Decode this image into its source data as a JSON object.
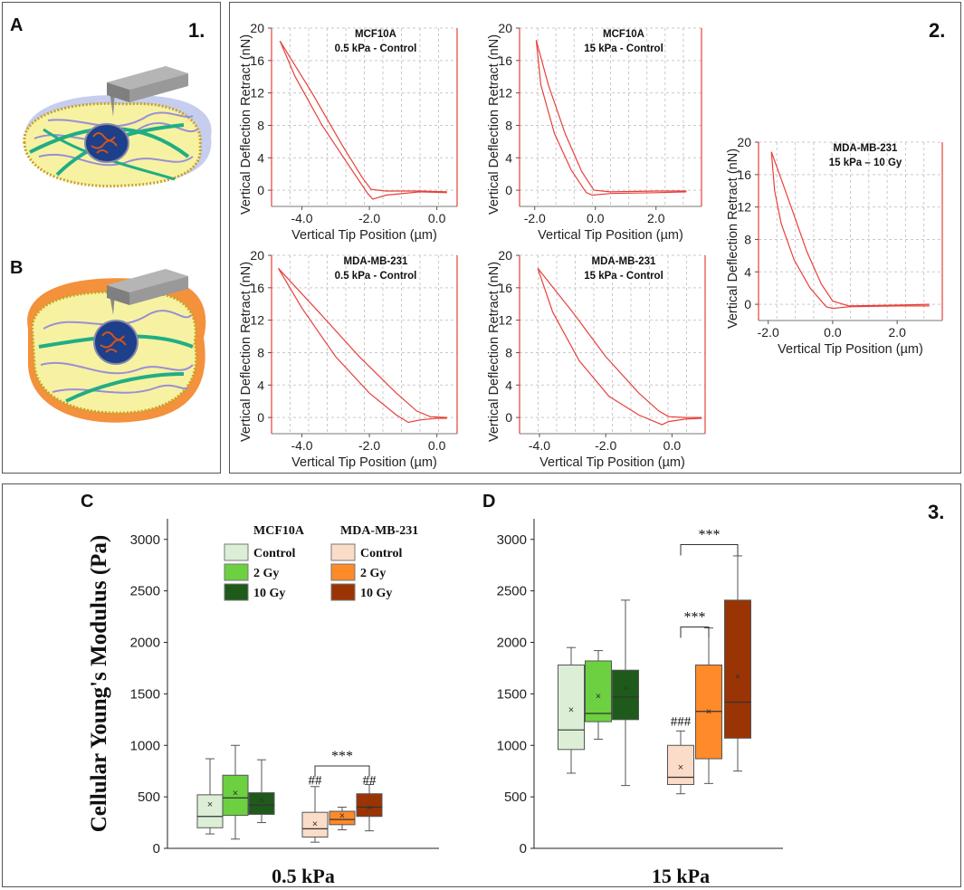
{
  "panel_labels": {
    "a": "A",
    "b": "B",
    "c": "C",
    "d": "D",
    "p1": "1.",
    "p2": "2.",
    "p3": "3."
  },
  "colors": {
    "curve": "#e8403a",
    "mcf_control": "#dcefd6",
    "mcf_2gy": "#6cd040",
    "mcf_10gy": "#1e5a1a",
    "mda_control": "#fbdcc8",
    "mda_2gy": "#ff8a2a",
    "mda_10gy": "#9a3404",
    "cyto": "#f6f2a2",
    "membrane_a": "#b8c0e8",
    "membrane_b": "#f4913c",
    "actin": "#21ad84",
    "filament": "#9b8ed6",
    "tip": "#9a9a9a"
  },
  "icons": [
    "cantilever-icon",
    "cell-nucleus-icon"
  ],
  "chart_data": [
    {
      "type": "line",
      "id": "mcf10a-05",
      "title": [
        "MCF10A",
        "0.5 kPa - Control"
      ],
      "xlabel": "Vertical Tip Position (µm)",
      "ylabel": "Vertical Deflection Retract (nN)",
      "xlim": [
        -4.9,
        0.6
      ],
      "ylim": [
        -2,
        20
      ],
      "xticks": [
        -4.0,
        -2.0,
        0.0
      ],
      "xtick_labels": [
        "-4.0",
        "-2.0",
        "0.0"
      ],
      "yticks": [
        0,
        4,
        8,
        12,
        16,
        20
      ],
      "ytick_labels": [
        "0",
        "4",
        "8",
        "12",
        "16",
        "20"
      ],
      "series": [
        {
          "name": "approach",
          "x": [
            -4.65,
            -3.7,
            -2.8,
            -2.2,
            -1.95,
            -1.5,
            -0.5,
            0.3
          ],
          "y": [
            18.4,
            12,
            5.5,
            1.5,
            0.1,
            -0.1,
            -0.1,
            -0.2
          ]
        },
        {
          "name": "retract",
          "x": [
            -4.65,
            -4.2,
            -3.4,
            -2.6,
            -2.05,
            -1.9,
            -1.5,
            -0.5,
            0.3
          ],
          "y": [
            18.4,
            14,
            8,
            3,
            -0.4,
            -1.1,
            -0.6,
            -0.2,
            -0.3
          ]
        }
      ]
    },
    {
      "type": "line",
      "id": "mcf10a-15",
      "title": [
        "MCF10A",
        "15 kPa - Control"
      ],
      "xlabel": "Vertical Tip Position (µm)",
      "ylabel": "Vertical Deflection Retract (nN)",
      "xlim": [
        -2.5,
        3.5
      ],
      "ylim": [
        -2,
        20
      ],
      "xticks": [
        -2.0,
        0.0,
        2.0
      ],
      "xtick_labels": [
        "-2.0",
        "0.0",
        "2.0"
      ],
      "yticks": [
        0,
        4,
        8,
        12,
        16,
        20
      ],
      "ytick_labels": [
        "0",
        "4",
        "8",
        "12",
        "16",
        "20"
      ],
      "series": [
        {
          "name": "approach",
          "x": [
            -1.95,
            -1.55,
            -1.0,
            -0.45,
            -0.05,
            0.5,
            2.0,
            3.0
          ],
          "y": [
            18.5,
            13,
            7,
            2.3,
            0.0,
            -0.2,
            -0.1,
            -0.1
          ]
        },
        {
          "name": "retract",
          "x": [
            -1.95,
            -1.8,
            -1.35,
            -0.8,
            -0.3,
            -0.1,
            0.5,
            2.0,
            3.0
          ],
          "y": [
            18.5,
            13,
            7,
            2.5,
            -0.3,
            -0.6,
            -0.4,
            -0.3,
            -0.2
          ]
        }
      ]
    },
    {
      "type": "line",
      "id": "mda-05",
      "title": [
        "MDA-MB-231",
        "0.5 kPa - Control"
      ],
      "xlabel": "Vertical Tip Position (µm)",
      "ylabel": "Vertical Deflection Retract (nN)",
      "xlim": [
        -4.9,
        0.6
      ],
      "ylim": [
        -2,
        20
      ],
      "xticks": [
        -4.0,
        -2.0,
        0.0
      ],
      "xtick_labels": [
        "-4.0",
        "-2.0",
        "0.0"
      ],
      "yticks": [
        0,
        4,
        8,
        12,
        16,
        20
      ],
      "ytick_labels": [
        "0",
        "4",
        "8",
        "12",
        "16",
        "20"
      ],
      "series": [
        {
          "name": "approach",
          "x": [
            -4.7,
            -3.5,
            -2.3,
            -1.2,
            -0.6,
            -0.2,
            0.3
          ],
          "y": [
            18.4,
            13,
            7.5,
            3,
            0.8,
            0.1,
            0.0
          ]
        },
        {
          "name": "retract",
          "x": [
            -4.7,
            -4.0,
            -3.0,
            -2.0,
            -1.2,
            -0.85,
            -0.5,
            0.0,
            0.3
          ],
          "y": [
            18.4,
            13.5,
            7.5,
            3.0,
            0.3,
            -0.6,
            -0.3,
            -0.1,
            -0.1
          ]
        }
      ]
    },
    {
      "type": "line",
      "id": "mda-15",
      "title": [
        "MDA-MB-231",
        "15 kPa - Control"
      ],
      "xlabel": "Vertical Tip Position (µm)",
      "ylabel": "Vertical Deflection Retract (nN)",
      "xlim": [
        -4.6,
        1.0
      ],
      "ylim": [
        -2,
        20
      ],
      "xticks": [
        -4.0,
        -2.0,
        0.0
      ],
      "xtick_labels": [
        "-4.0",
        "-2.0",
        "0.0"
      ],
      "yticks": [
        0,
        4,
        8,
        12,
        16,
        20
      ],
      "ytick_labels": [
        "0",
        "4",
        "8",
        "12",
        "16",
        "20"
      ],
      "series": [
        {
          "name": "approach",
          "x": [
            -4.05,
            -3.0,
            -2.0,
            -1.0,
            -0.4,
            -0.1,
            0.4,
            0.9
          ],
          "y": [
            18.4,
            13,
            7.5,
            3,
            0.8,
            0.1,
            0.0,
            0.0
          ]
        },
        {
          "name": "retract",
          "x": [
            -4.05,
            -3.6,
            -2.8,
            -1.9,
            -1.0,
            -0.3,
            -0.1,
            0.4,
            0.9
          ],
          "y": [
            18.4,
            13,
            7,
            2.6,
            0.3,
            -0.9,
            -0.5,
            -0.2,
            -0.1
          ]
        }
      ]
    },
    {
      "type": "line",
      "id": "mda-15-10gy",
      "title": [
        "MDA-MB-231",
        "15 kPa – 10 Gy"
      ],
      "xlabel": "Vertical Tip Position (µm)",
      "ylabel": "Vertical Deflection Retract (nN)",
      "xlim": [
        -2.3,
        3.4
      ],
      "ylim": [
        -2,
        20
      ],
      "xticks": [
        -2.0,
        0.0,
        2.0
      ],
      "xtick_labels": [
        "-2.0",
        "0.0",
        "2.0"
      ],
      "yticks": [
        0,
        4,
        8,
        12,
        16,
        20
      ],
      "ytick_labels": [
        "0",
        "4",
        "8",
        "12",
        "16",
        "20"
      ],
      "series": [
        {
          "name": "approach",
          "x": [
            -1.9,
            -1.6,
            -1.2,
            -0.8,
            -0.35,
            0.0,
            0.5,
            2.0,
            3.0
          ],
          "y": [
            18.8,
            15.5,
            11,
            6.5,
            2.5,
            0.4,
            -0.2,
            -0.1,
            0.0
          ]
        },
        {
          "name": "retract",
          "x": [
            -1.9,
            -1.8,
            -1.6,
            -1.2,
            -0.7,
            -0.2,
            0.0,
            0.5,
            2.0,
            3.0
          ],
          "y": [
            18.8,
            14,
            10,
            5.5,
            2.0,
            -0.3,
            -0.5,
            -0.3,
            -0.2,
            -0.2
          ]
        }
      ]
    },
    {
      "type": "box",
      "id": "box-05kpa",
      "xlabel": "0.5 kPa",
      "ylabel": "Cellular  Young's Modulus (Pa)",
      "ylim": [
        0,
        3200
      ],
      "yticks": [
        0,
        500,
        1000,
        1500,
        2000,
        2500,
        3000
      ],
      "ytick_labels": [
        "0",
        "500",
        "1000",
        "1500",
        "2000",
        "2500",
        "3000"
      ],
      "legend_groups": [
        {
          "title": "MCF10A",
          "items": [
            "Control",
            "2 Gy",
            "10 Gy"
          ]
        },
        {
          "title": "MDA-MB-231",
          "items": [
            "Control",
            "2 Gy",
            "10 Gy"
          ]
        }
      ],
      "boxes": [
        {
          "label": "MCF10A Control",
          "color": "mcf_control",
          "min": 140,
          "q1": 200,
          "median": 310,
          "q3": 520,
          "max": 870,
          "mean": 430
        },
        {
          "label": "MCF10A 2 Gy",
          "color": "mcf_2gy",
          "min": 90,
          "q1": 320,
          "median": 490,
          "q3": 710,
          "max": 1000,
          "mean": 540
        },
        {
          "label": "MCF10A 10 Gy",
          "color": "mcf_10gy",
          "min": 250,
          "q1": 330,
          "median": 420,
          "q3": 540,
          "max": 860,
          "mean": 470
        },
        {
          "label": "MDA-MB-231 Control",
          "color": "mda_control",
          "min": 60,
          "q1": 110,
          "median": 190,
          "q3": 350,
          "max": 600,
          "mean": 240
        },
        {
          "label": "MDA-MB-231 2 Gy",
          "color": "mda_2gy",
          "min": 180,
          "q1": 230,
          "median": 280,
          "q3": 360,
          "max": 400,
          "mean": 320
        },
        {
          "label": "MDA-MB-231 10 Gy",
          "color": "mda_10gy",
          "min": 170,
          "q1": 310,
          "median": 400,
          "q3": 530,
          "max": 620,
          "mean": 400
        }
      ],
      "annotations": [
        {
          "text": "##",
          "box": 3,
          "y": 620
        },
        {
          "text": "##",
          "box": 5,
          "y": 620
        },
        {
          "text": "***",
          "from": 3,
          "to": 5,
          "y": 800
        }
      ]
    },
    {
      "type": "box",
      "id": "box-15kpa",
      "xlabel": "15 kPa",
      "ylim": [
        0,
        3200
      ],
      "yticks": [
        0,
        500,
        1000,
        1500,
        2000,
        2500,
        3000
      ],
      "ytick_labels": [
        "0",
        "500",
        "1000",
        "1500",
        "2000",
        "2500",
        "3000"
      ],
      "boxes": [
        {
          "label": "MCF10A Control",
          "color": "mcf_control",
          "min": 730,
          "q1": 960,
          "median": 1150,
          "q3": 1780,
          "max": 1950,
          "mean": 1350
        },
        {
          "label": "MCF10A 2 Gy",
          "color": "mcf_2gy",
          "min": 1060,
          "q1": 1230,
          "median": 1310,
          "q3": 1820,
          "max": 1920,
          "mean": 1480
        },
        {
          "label": "MCF10A 10 Gy",
          "color": "mcf_10gy",
          "min": 610,
          "q1": 1250,
          "median": 1470,
          "q3": 1730,
          "max": 2410,
          "mean": 1560
        },
        {
          "label": "MDA-MB-231 Control",
          "color": "mda_control",
          "min": 530,
          "q1": 620,
          "median": 690,
          "q3": 1000,
          "max": 1140,
          "mean": 790
        },
        {
          "label": "MDA-MB-231 2 Gy",
          "color": "mda_2gy",
          "min": 630,
          "q1": 870,
          "median": 1330,
          "q3": 1780,
          "max": 2140,
          "mean": 1330
        },
        {
          "label": "MDA-MB-231 10 Gy",
          "color": "mda_10gy",
          "min": 750,
          "q1": 1070,
          "median": 1420,
          "q3": 2410,
          "max": 2840,
          "mean": 1670
        }
      ],
      "annotations": [
        {
          "text": "###",
          "box": 3,
          "y": 1190
        },
        {
          "text": "***",
          "from": 3,
          "to": 4,
          "y": 2150
        },
        {
          "text": "***",
          "from": 3,
          "to": 5,
          "y": 2950
        }
      ]
    }
  ]
}
